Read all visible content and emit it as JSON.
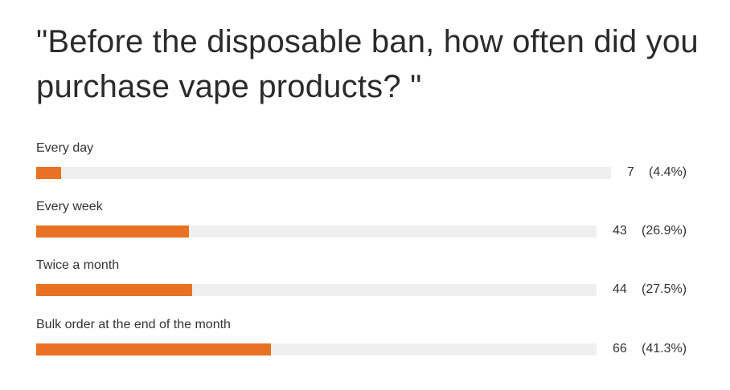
{
  "poll": {
    "title": "\"Before the disposable ban, how often did you purchase vape products? \"",
    "accent_color": "#e87124",
    "track_color": "#efefef",
    "options": [
      {
        "label": "Every day",
        "count": "7",
        "percent": "(4.4%)"
      },
      {
        "label": "Every week",
        "count": "43",
        "percent": "(26.9%)"
      },
      {
        "label": "Twice a month",
        "count": "44",
        "percent": "(27.5%)"
      },
      {
        "label": "Bulk order at the end of the month",
        "count": "66",
        "percent": "(41.3%)"
      }
    ]
  },
  "chart_data": {
    "type": "bar",
    "orientation": "horizontal",
    "title": "\"Before the disposable ban, how often did you purchase vape products? \"",
    "categories": [
      "Every day",
      "Every week",
      "Twice a month",
      "Bulk order at the end of the month"
    ],
    "values": [
      7,
      43,
      44,
      66
    ],
    "percentages": [
      4.4,
      26.9,
      27.5,
      41.3
    ],
    "xlim": [
      0,
      100
    ],
    "grid": false,
    "legend": "none"
  }
}
